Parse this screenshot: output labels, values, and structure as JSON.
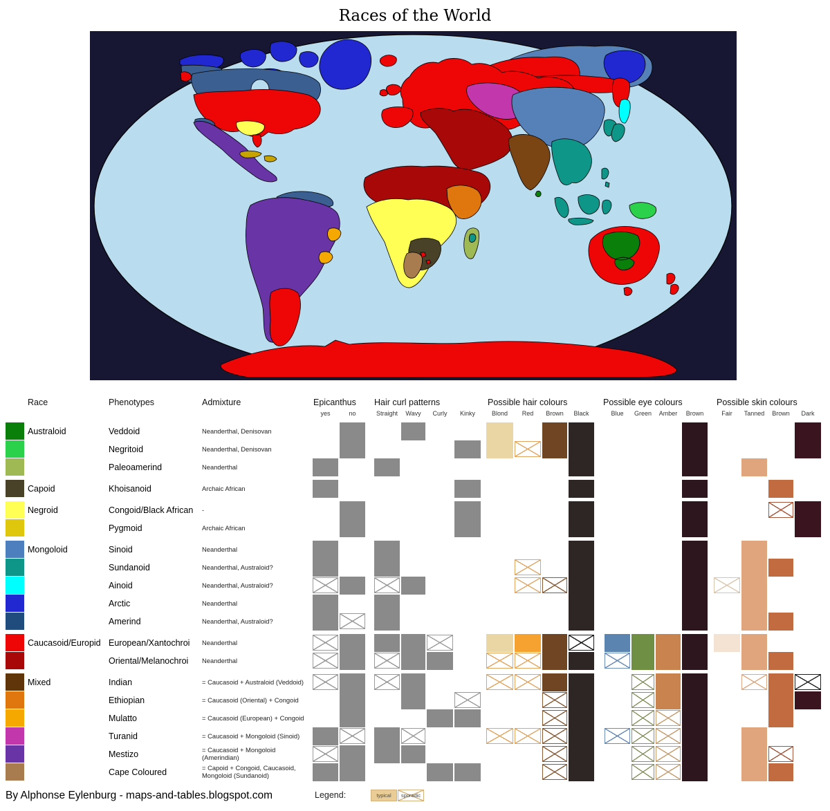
{
  "title": "Races of the World",
  "attribution": "By Alphonse Eylenburg - maps-and-tables.blogspot.com",
  "legend": {
    "label": "Legend:",
    "typical_label": "typical",
    "sporadic_label": "sporadic",
    "typical_fill": "#eacd96",
    "box_border": "#d3b27c"
  },
  "map": {
    "background": "#171733",
    "palette": {
      "ocean": "#b9dcef",
      "australoid": "#0a7f0a",
      "negritoid": "#2bd14b",
      "paleoamerind": "#9fba55",
      "capoid": "#4a4228",
      "negroid": "#ffff55",
      "caribbean": "#c8a400",
      "sinoid": "#5580b8",
      "sundanoid": "#0e9688",
      "ainoid": "#00ffff",
      "arctic": "#2128d1",
      "amerind": "#3b5f91",
      "european": "#ee0505",
      "oriental": "#a80808",
      "indian": "#7a4513",
      "ethiopian": "#e0760e",
      "mulatto": "#f5a800",
      "turanid": "#c237ab",
      "mestizo": "#6834a6",
      "cape": "#a87c4f"
    }
  },
  "table": {
    "header": {
      "race": "Race",
      "phenotypes": "Phenotypes",
      "admixture": "Admixture"
    },
    "groups": [
      {
        "label": "Epicanthus"
      },
      {
        "label": "Hair curl patterns"
      },
      {
        "label": "Possible hair colours"
      },
      {
        "label": "Possible eye colours"
      },
      {
        "label": "Possible skin colours"
      }
    ],
    "matrix_columns": [
      {
        "key": "ep_yes",
        "label": "yes",
        "group": "Epicanthus",
        "fill": "#8a8a8a",
        "x": "#9a9a9a"
      },
      {
        "key": "ep_no",
        "label": "no",
        "group": "Epicanthus",
        "fill": "#8a8a8a",
        "x": "#9a9a9a"
      },
      {
        "key": "straight",
        "label": "Straight",
        "group": "Hair curl patterns",
        "fill": "#8a8a8a",
        "x": "#9a9a9a"
      },
      {
        "key": "wavy",
        "label": "Wavy",
        "group": "Hair curl patterns",
        "fill": "#8a8a8a",
        "x": "#9a9a9a"
      },
      {
        "key": "curly",
        "label": "Curly",
        "group": "Hair curl patterns",
        "fill": "#8a8a8a",
        "x": "#9a9a9a"
      },
      {
        "key": "kinky",
        "label": "Kinky",
        "group": "Hair curl patterns",
        "fill": "#8a8a8a",
        "x": "#9a9a9a"
      },
      {
        "key": "h_blond",
        "label": "Blond",
        "group": "Possible hair colours",
        "fill": "#e9d6a4",
        "x": "#e2a55f"
      },
      {
        "key": "h_red",
        "label": "Red",
        "group": "Possible hair colours",
        "fill": "#f6a231",
        "x": "#e2a55f"
      },
      {
        "key": "h_brown",
        "label": "Brown",
        "group": "Possible hair colours",
        "fill": "#6f4523",
        "x": "#8a5a32"
      },
      {
        "key": "h_black",
        "label": "Black",
        "group": "Possible hair colours",
        "fill": "#2e2624",
        "x": "#1a1a1a"
      },
      {
        "key": "e_blue",
        "label": "Blue",
        "group": "Possible eye colours",
        "fill": "#5b84b1",
        "x": "#6b8cb5"
      },
      {
        "key": "e_green",
        "label": "Green",
        "group": "Possible eye colours",
        "fill": "#6f8f45",
        "x": "#85935f"
      },
      {
        "key": "e_amber",
        "label": "Amber",
        "group": "Possible eye colours",
        "fill": "#c8834f",
        "x": "#c89a6a"
      },
      {
        "key": "e_brown",
        "label": "Brown",
        "group": "Possible eye colours",
        "fill": "#2e161e",
        "x": "#2e161e"
      },
      {
        "key": "s_fair",
        "label": "Fair",
        "group": "Possible skin colours",
        "fill": "#f4e3d3",
        "x": "#dcc3ac"
      },
      {
        "key": "s_tanned",
        "label": "Tanned",
        "group": "Possible skin colours",
        "fill": "#e0a57c",
        "x": "#dcab85"
      },
      {
        "key": "s_brown",
        "label": "Brown",
        "group": "Possible skin colours",
        "fill": "#c26a40",
        "x": "#a6543a"
      },
      {
        "key": "s_dark",
        "label": "Dark",
        "group": "Possible skin colours",
        "fill": "#3a141e",
        "x": "#1d1d1d"
      }
    ],
    "rows": [
      {
        "race": "Australoid",
        "swatch": "#0a7f0a",
        "phenotype": "Veddoid",
        "admixture": "Neanderthal, Denisovan",
        "cells": {
          "ep_no": "T",
          "wavy": "T",
          "h_blond": "T",
          "h_brown": "T",
          "h_black": "T",
          "e_brown": "T",
          "s_dark": "T"
        }
      },
      {
        "race": "",
        "swatch": "#2bd14b",
        "phenotype": "Negritoid",
        "admixture": "Neanderthal, Denisovan",
        "cells": {
          "ep_no": "T",
          "kinky": "T",
          "h_blond": "T",
          "h_red": "S",
          "h_brown": "T",
          "h_black": "T",
          "e_brown": "T",
          "s_dark": "T"
        }
      },
      {
        "race": "",
        "swatch": "#9fba55",
        "phenotype": "Paleoamerind",
        "admixture": "Neanderthal",
        "cells": {
          "ep_yes": "T",
          "straight": "T",
          "h_black": "T",
          "e_brown": "T",
          "s_tanned": "T"
        }
      },
      {
        "race": "Capoid",
        "swatch": "#4a4228",
        "phenotype": "Khoisanoid",
        "admixture": "Archaic African",
        "cells": {
          "ep_yes": "T",
          "kinky": "T",
          "h_black": "T",
          "e_brown": "T",
          "s_brown": "T"
        }
      },
      {
        "race": "Negroid",
        "swatch": "#ffff55",
        "phenotype": "Congoid/Black African",
        "admixture": "-",
        "cells": {
          "ep_no": "T",
          "kinky": "T",
          "h_black": "T",
          "e_brown": "T",
          "s_brown": "S",
          "s_dark": "T"
        }
      },
      {
        "race": "",
        "swatch": "#dfc70e",
        "phenotype": "Pygmoid",
        "admixture": "Archaic African",
        "cells": {
          "ep_no": "T",
          "kinky": "T",
          "h_black": "T",
          "e_brown": "T",
          "s_dark": "T"
        }
      },
      {
        "race": "Mongoloid",
        "swatch": "#4d7fbe",
        "phenotype": "Sinoid",
        "admixture": "Neanderthal",
        "cells": {
          "ep_yes": "T",
          "straight": "T",
          "h_black": "T",
          "e_brown": "T",
          "s_tanned": "T"
        }
      },
      {
        "race": "",
        "swatch": "#0e9688",
        "phenotype": "Sundanoid",
        "admixture": "Neanderthal, Australoid?",
        "cells": {
          "ep_yes": "T",
          "straight": "T",
          "h_red": "S",
          "h_black": "T",
          "e_brown": "T",
          "s_tanned": "T",
          "s_brown": "T"
        }
      },
      {
        "race": "",
        "swatch": "#00ffff",
        "phenotype": "Ainoid",
        "admixture": "Neanderthal, Australoid?",
        "cells": {
          "ep_yes": "S",
          "ep_no": "T",
          "straight": "S",
          "wavy": "T",
          "h_red": "S",
          "h_brown": "S",
          "h_black": "T",
          "e_brown": "T",
          "s_fair": "S",
          "s_tanned": "T"
        }
      },
      {
        "race": "",
        "swatch": "#2128d1",
        "phenotype": "Arctic",
        "admixture": "Neanderthal",
        "cells": {
          "ep_yes": "T",
          "straight": "T",
          "h_black": "T",
          "e_brown": "T",
          "s_tanned": "T"
        }
      },
      {
        "race": "",
        "swatch": "#1f4b7d",
        "phenotype": "Amerind",
        "admixture": "Neanderthal, Australoid?",
        "cells": {
          "ep_yes": "T",
          "ep_no": "S",
          "straight": "T",
          "h_black": "T",
          "e_brown": "T",
          "s_tanned": "T",
          "s_brown": "T"
        }
      },
      {
        "race": "Caucasoid/Europid",
        "swatch": "#ee0505",
        "phenotype": "European/Xantochroi",
        "admixture": "Neanderthal",
        "cells": {
          "ep_yes": "S",
          "ep_no": "T",
          "straight": "T",
          "wavy": "T",
          "curly": "S",
          "h_blond": "T",
          "h_red": "T",
          "h_brown": "T",
          "h_black": "S",
          "e_blue": "T",
          "e_green": "T",
          "e_amber": "T",
          "e_brown": "T",
          "s_fair": "T",
          "s_tanned": "T"
        }
      },
      {
        "race": "",
        "swatch": "#a80808",
        "phenotype": "Oriental/Melanochroi",
        "admixture": "Neanderthal",
        "cells": {
          "ep_yes": "S",
          "ep_no": "T",
          "straight": "S",
          "wavy": "T",
          "curly": "T",
          "h_blond": "S",
          "h_red": "S",
          "h_brown": "T",
          "h_black": "T",
          "e_blue": "S",
          "e_green": "T",
          "e_amber": "T",
          "e_brown": "T",
          "s_tanned": "T",
          "s_brown": "T"
        }
      },
      {
        "race": "Mixed",
        "swatch": "#60350a",
        "phenotype": "Indian",
        "admixture": "= Caucasoid + Australoid (Veddoid)",
        "cells": {
          "ep_yes": "S",
          "ep_no": "T",
          "straight": "S",
          "wavy": "T",
          "h_blond": "S",
          "h_red": "S",
          "h_brown": "T",
          "h_black": "T",
          "e_green": "S",
          "e_amber": "T",
          "e_brown": "T",
          "s_tanned": "S",
          "s_brown": "T",
          "s_dark": "S"
        }
      },
      {
        "race": "",
        "swatch": "#e0760e",
        "phenotype": "Ethiopian",
        "admixture": "= Caucasoid (Oriental) + Congoid",
        "cells": {
          "ep_no": "T",
          "wavy": "T",
          "kinky": "S",
          "h_brown": "S",
          "h_black": "T",
          "e_green": "S",
          "e_amber": "T",
          "e_brown": "T",
          "s_brown": "T",
          "s_dark": "T"
        }
      },
      {
        "race": "",
        "swatch": "#f5a800",
        "phenotype": "Mulatto",
        "admixture": "= Caucasoid (European) + Congoid",
        "cells": {
          "ep_no": "T",
          "curly": "T",
          "kinky": "T",
          "h_brown": "S",
          "h_black": "T",
          "e_green": "S",
          "e_amber": "S",
          "e_brown": "T",
          "s_brown": "T"
        }
      },
      {
        "race": "",
        "swatch": "#c237ab",
        "phenotype": "Turanid",
        "admixture": "= Caucasoid + Mongoloid (Sinoid)",
        "cells": {
          "ep_yes": "T",
          "ep_no": "S",
          "straight": "T",
          "wavy": "S",
          "h_blond": "S",
          "h_red": "S",
          "h_brown": "S",
          "h_black": "T",
          "e_blue": "S",
          "e_green": "S",
          "e_amber": "S",
          "e_brown": "T",
          "s_tanned": "T"
        }
      },
      {
        "race": "",
        "swatch": "#6834a6",
        "phenotype": "Mestizo",
        "admixture": "= Caucasoid + Mongoloid (Amerindian)",
        "cells": {
          "ep_yes": "S",
          "ep_no": "T",
          "straight": "T",
          "wavy": "T",
          "h_brown": "S",
          "h_black": "T",
          "e_green": "S",
          "e_amber": "S",
          "e_brown": "T",
          "s_tanned": "T",
          "s_brown": "S"
        }
      },
      {
        "race": "",
        "swatch": "#a87c4f",
        "phenotype": "Cape Coloured",
        "admixture": "= Capoid + Congoid, Caucasoid, Mongoloid (Sundanoid)",
        "cells": {
          "ep_yes": "T",
          "ep_no": "T",
          "curly": "T",
          "kinky": "T",
          "h_brown": "S",
          "h_black": "T",
          "e_green": "S",
          "e_amber": "S",
          "e_brown": "T",
          "s_tanned": "T",
          "s_brown": "T"
        }
      }
    ]
  }
}
